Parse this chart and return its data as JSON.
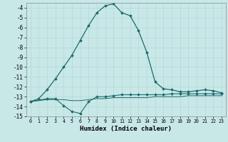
{
  "title": "",
  "xlabel": "Humidex (Indice chaleur)",
  "ylabel": "",
  "background_color": "#c8e8e8",
  "grid_color": "#b8d4d4",
  "line_color": "#1a6b6b",
  "xlim": [
    -0.5,
    23.5
  ],
  "ylim": [
    -15,
    -3.5
  ],
  "yticks": [
    -15,
    -14,
    -13,
    -12,
    -11,
    -10,
    -9,
    -8,
    -7,
    -6,
    -5,
    -4
  ],
  "xticks": [
    0,
    1,
    2,
    3,
    4,
    5,
    6,
    7,
    8,
    9,
    10,
    11,
    12,
    13,
    14,
    15,
    16,
    17,
    18,
    19,
    20,
    21,
    22,
    23
  ],
  "line1_x": [
    0,
    1,
    2,
    3,
    4,
    5,
    6,
    7,
    8,
    9,
    10,
    11,
    12,
    13,
    14,
    15,
    16,
    17,
    18,
    19,
    20,
    21,
    22,
    23
  ],
  "line1_y": [
    -13.5,
    -13.2,
    -12.3,
    -11.2,
    -10.0,
    -8.8,
    -7.3,
    -5.8,
    -4.5,
    -3.8,
    -3.6,
    -4.5,
    -4.8,
    -6.3,
    -8.5,
    -11.5,
    -12.2,
    -12.3,
    -12.5,
    -12.5,
    -12.4,
    -12.3,
    -12.4,
    -12.6
  ],
  "line2_x": [
    0,
    2,
    3,
    4,
    5,
    6,
    7,
    8,
    9,
    10,
    11,
    12,
    13,
    14,
    15,
    16,
    17,
    18,
    19,
    20,
    21,
    22,
    23
  ],
  "line2_y": [
    -13.5,
    -13.2,
    -13.2,
    -13.9,
    -14.5,
    -14.7,
    -13.5,
    -13.0,
    -13.0,
    -12.9,
    -12.8,
    -12.8,
    -12.8,
    -12.8,
    -12.8,
    -12.8,
    -12.7,
    -12.7,
    -12.7,
    -12.7,
    -12.7,
    -12.7,
    -12.7
  ],
  "line3_x": [
    0,
    1,
    2,
    3,
    4,
    5,
    6,
    7,
    8,
    9,
    10,
    11,
    12,
    13,
    14,
    15,
    16,
    17,
    18,
    19,
    20,
    21,
    22,
    23
  ],
  "line3_y": [
    -13.5,
    -13.4,
    -13.3,
    -13.3,
    -13.3,
    -13.4,
    -13.4,
    -13.3,
    -13.2,
    -13.2,
    -13.1,
    -13.1,
    -13.1,
    -13.1,
    -13.1,
    -13.0,
    -13.0,
    -13.0,
    -13.0,
    -12.9,
    -12.9,
    -12.9,
    -12.9,
    -12.9
  ]
}
